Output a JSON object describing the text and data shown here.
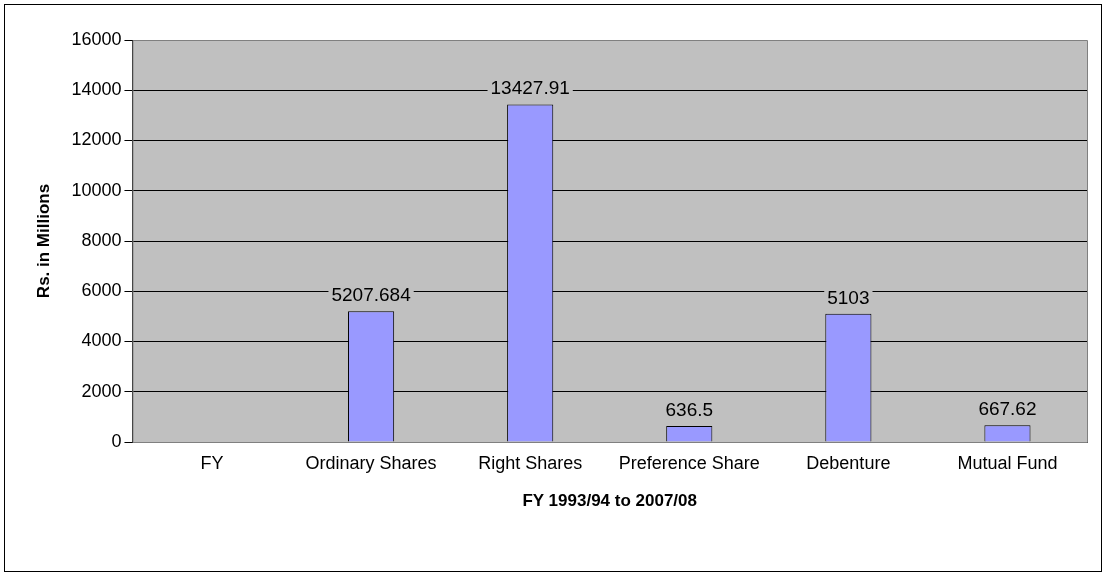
{
  "chart_data": {
    "type": "bar",
    "xlabel": "FY 1993/94 to 2007/08",
    "ylabel": "Rs. in Millions",
    "categories": [
      "FY",
      "Ordinary Shares",
      "Right Shares",
      "Preference Share",
      "Debenture",
      "Mutual Fund"
    ],
    "values": [
      null,
      5207.684,
      13427.91,
      636.5,
      5103,
      667.62
    ],
    "color": "#9999ff",
    "ylim": [
      0,
      16000
    ],
    "yticks": [
      0,
      2000,
      4000,
      6000,
      8000,
      10000,
      12000,
      14000,
      16000
    ],
    "grid": "y",
    "legend": false,
    "data_labels": true
  }
}
